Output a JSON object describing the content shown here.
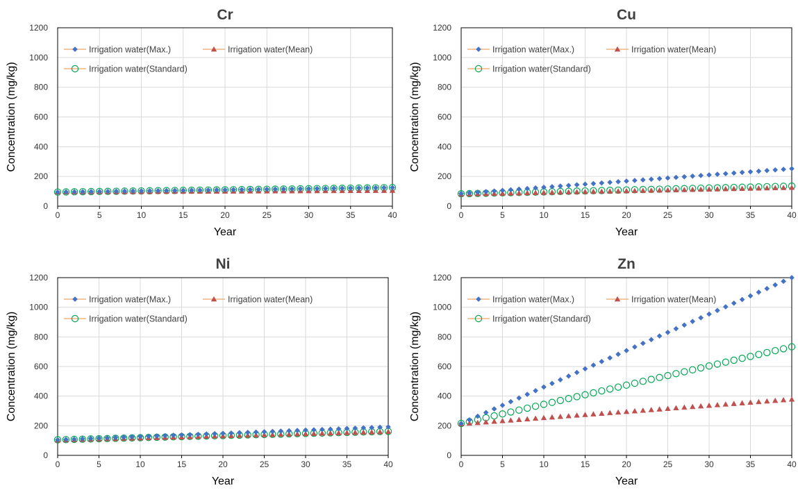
{
  "colors": {
    "max": "#4472C4",
    "mean": "#C0504D",
    "standard": "#00A651",
    "legend_line": "#F4A460",
    "grid": "#D9D9D9",
    "axis": "#000000"
  },
  "legend": {
    "max": "Irrigation water(Max.)",
    "mean": "Irrigation water(Mean)",
    "standard": "Irrigation water(Standard)"
  },
  "chart_data": [
    {
      "type": "scatter",
      "title": "Cr",
      "xlabel": "Year",
      "ylabel": "Concentration (mg/kg)",
      "xlim": [
        0,
        40
      ],
      "ylim": [
        0,
        1200
      ],
      "xticks": [
        "0",
        "5",
        "10",
        "15",
        "20",
        "25",
        "30",
        "35",
        "40"
      ],
      "yticks": [
        "0",
        "200",
        "400",
        "600",
        "800",
        "1000",
        "1200"
      ],
      "grid": true,
      "legend_position": "top-left",
      "x": {
        "start": 0,
        "end": 40,
        "step": 1
      },
      "series": [
        {
          "name": "Irrigation water(Max.)",
          "marker": "diamond",
          "start": 95,
          "end": 125
        },
        {
          "name": "Irrigation water(Mean)",
          "marker": "triangle",
          "start": 95,
          "end": 105
        },
        {
          "name": "Irrigation water(Standard)",
          "marker": "circle",
          "start": 95,
          "end": 125
        }
      ]
    },
    {
      "type": "scatter",
      "title": "Cu",
      "xlabel": "Year",
      "ylabel": "Concentration (mg/kg)",
      "xlim": [
        0,
        40
      ],
      "ylim": [
        0,
        1200
      ],
      "xticks": [
        "0",
        "5",
        "10",
        "15",
        "20",
        "25",
        "30",
        "35",
        "40"
      ],
      "yticks": [
        "0",
        "200",
        "400",
        "600",
        "800",
        "1000",
        "1200"
      ],
      "grid": true,
      "legend_position": "top-left",
      "x": {
        "start": 0,
        "end": 40,
        "step": 1
      },
      "series": [
        {
          "name": "Irrigation water(Max.)",
          "marker": "diamond",
          "start": 85,
          "end": 252
        },
        {
          "name": "Irrigation water(Mean)",
          "marker": "triangle",
          "start": 80,
          "end": 125
        },
        {
          "name": "Irrigation water(Standard)",
          "marker": "circle",
          "start": 83,
          "end": 135
        }
      ]
    },
    {
      "type": "scatter",
      "title": "Ni",
      "xlabel": "Year",
      "ylabel": "Concentration (mg/kg)",
      "xlim": [
        0,
        40
      ],
      "ylim": [
        0,
        1200
      ],
      "xticks": [
        "0",
        "5",
        "10",
        "15",
        "20",
        "25",
        "30",
        "35",
        "40"
      ],
      "yticks": [
        "0",
        "200",
        "400",
        "600",
        "800",
        "1000",
        "1200"
      ],
      "grid": true,
      "legend_position": "top-left",
      "x": {
        "start": 0,
        "end": 40,
        "step": 1
      },
      "series": [
        {
          "name": "Irrigation water(Max.)",
          "marker": "diamond",
          "start": 105,
          "end": 192
        },
        {
          "name": "Irrigation water(Mean)",
          "marker": "triangle",
          "start": 102,
          "end": 160
        },
        {
          "name": "Irrigation water(Standard)",
          "marker": "circle",
          "start": 105,
          "end": 162
        }
      ]
    },
    {
      "type": "scatter",
      "title": "Zn",
      "xlabel": "Year",
      "ylabel": "Concentration (mg/kg)",
      "xlim": [
        0,
        40
      ],
      "ylim": [
        0,
        1200
      ],
      "xticks": [
        "0",
        "5",
        "10",
        "15",
        "20",
        "25",
        "30",
        "35",
        "40"
      ],
      "yticks": [
        "0",
        "200",
        "400",
        "600",
        "800",
        "1000",
        "1200"
      ],
      "grid": true,
      "legend_position": "top-left",
      "x": {
        "start": 0,
        "end": 40,
        "step": 1
      },
      "series": [
        {
          "name": "Irrigation water(Max.)",
          "marker": "diamond",
          "start": 215,
          "end": 1200
        },
        {
          "name": "Irrigation water(Mean)",
          "marker": "triangle",
          "start": 212,
          "end": 378
        },
        {
          "name": "Irrigation water(Standard)",
          "marker": "circle",
          "start": 215,
          "end": 733
        }
      ]
    }
  ]
}
